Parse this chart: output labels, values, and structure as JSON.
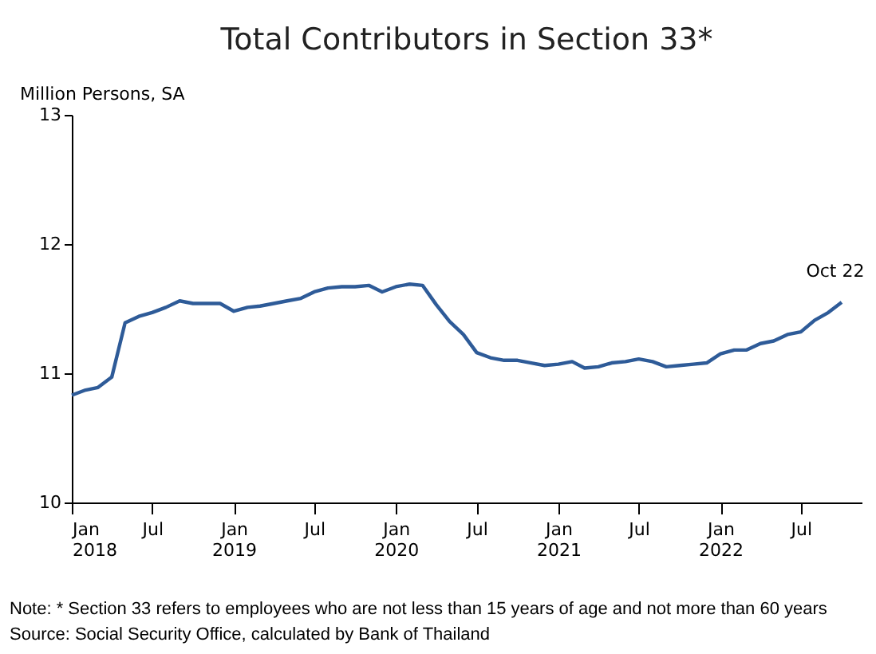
{
  "chart_data": {
    "type": "line",
    "title": "Total Contributors in Section 33*",
    "ylabel": "Million Persons, SA",
    "x": [
      "2018-01",
      "2018-02",
      "2018-03",
      "2018-04",
      "2018-05",
      "2018-06",
      "2018-07",
      "2018-08",
      "2018-09",
      "2018-10",
      "2018-11",
      "2018-12",
      "2019-01",
      "2019-02",
      "2019-03",
      "2019-04",
      "2019-05",
      "2019-06",
      "2019-07",
      "2019-08",
      "2019-09",
      "2019-10",
      "2019-11",
      "2019-12",
      "2020-01",
      "2020-02",
      "2020-03",
      "2020-04",
      "2020-05",
      "2020-06",
      "2020-07",
      "2020-08",
      "2020-09",
      "2020-10",
      "2020-11",
      "2020-12",
      "2021-01",
      "2021-02",
      "2021-03",
      "2021-04",
      "2021-05",
      "2021-06",
      "2021-07",
      "2021-08",
      "2021-09",
      "2021-10",
      "2021-11",
      "2021-12",
      "2022-01",
      "2022-02",
      "2022-03",
      "2022-04",
      "2022-05",
      "2022-06",
      "2022-07",
      "2022-08",
      "2022-09",
      "2022-10"
    ],
    "series": [
      {
        "color": "#2e5b98",
        "values": [
          10.83,
          10.87,
          10.89,
          10.97,
          11.39,
          11.44,
          11.47,
          11.51,
          11.56,
          11.54,
          11.54,
          11.54,
          11.48,
          11.51,
          11.52,
          11.54,
          11.56,
          11.58,
          11.63,
          11.66,
          11.67,
          11.67,
          11.68,
          11.63,
          11.67,
          11.69,
          11.68,
          11.53,
          11.4,
          11.3,
          11.16,
          11.12,
          11.1,
          11.1,
          11.08,
          11.06,
          11.07,
          11.09,
          11.04,
          11.05,
          11.08,
          11.09,
          11.11,
          11.09,
          11.05,
          11.06,
          11.07,
          11.08,
          11.15,
          11.18,
          11.18,
          11.23,
          11.25,
          11.3,
          11.32,
          11.41,
          11.47,
          11.55
        ]
      }
    ],
    "xlim": [
      "2018-01",
      "2022-11-15"
    ],
    "xticks": [
      {
        "value": "2018-01",
        "label": "Jan\n2018"
      },
      {
        "value": "2018-07",
        "label": "Jul"
      },
      {
        "value": "2019-01",
        "label": "Jan\n2019"
      },
      {
        "value": "2019-07",
        "label": "Jul"
      },
      {
        "value": "2020-01",
        "label": "Jan\n2020"
      },
      {
        "value": "2020-07",
        "label": "Jul"
      },
      {
        "value": "2021-01",
        "label": "Jan\n2021"
      },
      {
        "value": "2021-07",
        "label": "Jul"
      },
      {
        "value": "2022-01",
        "label": "Jan\n2022"
      },
      {
        "value": "2022-07",
        "label": "Jul"
      }
    ],
    "ylim": [
      10,
      13
    ],
    "yticks": [
      10,
      11,
      12,
      13
    ],
    "annotations": [
      {
        "text": "Oct 22",
        "x": "2022-10",
        "y": 11.55
      },
      "Note: * Section 33 refers to employees who are not less than 15 years of age and not more than 60 years",
      "Source: Social Security Office, calculated by Bank of Thailand"
    ]
  }
}
